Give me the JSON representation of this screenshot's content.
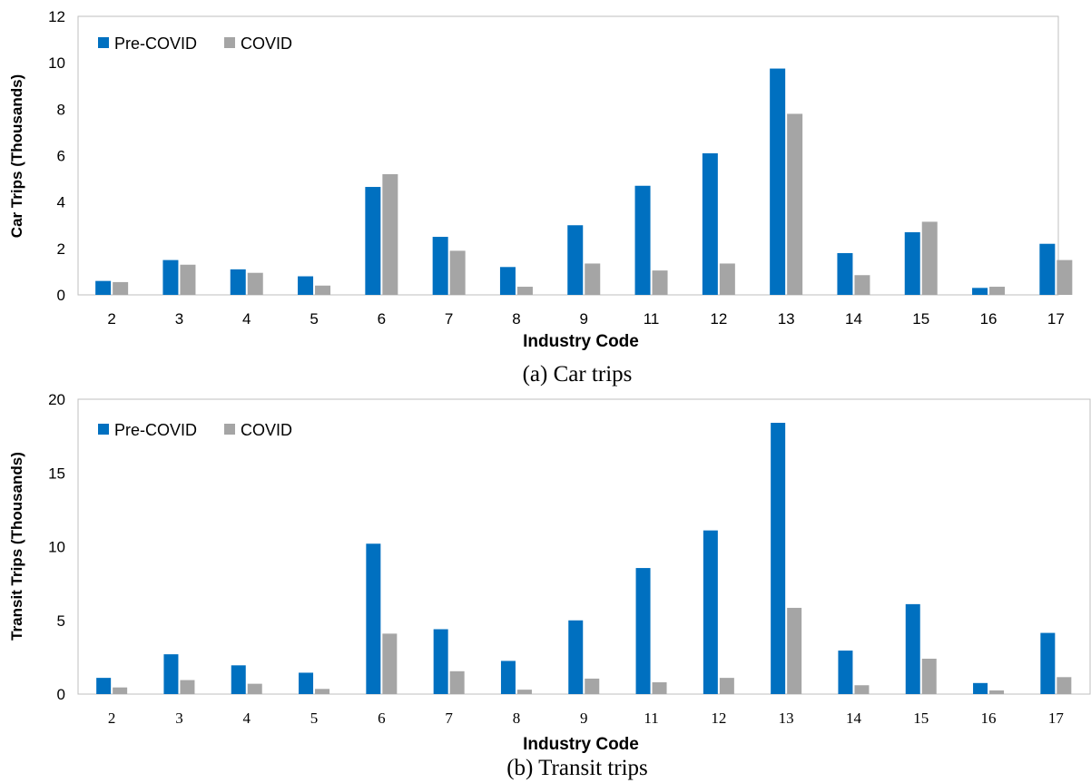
{
  "colors": {
    "pre": "#0070C0",
    "covid": "#A5A5A5"
  },
  "legend": [
    "Pre-COVID",
    "COVID"
  ],
  "chart_data": [
    {
      "type": "bar",
      "caption": "(a) Car trips",
      "xlabel": "Industry Code",
      "ylabel": "Car Trips (Thousands)",
      "ylim": [
        0,
        12
      ],
      "yticks": [
        0,
        2,
        4,
        6,
        8,
        10,
        12
      ],
      "categories": [
        "2",
        "3",
        "4",
        "5",
        "6",
        "7",
        "8",
        "9",
        "11",
        "12",
        "13",
        "14",
        "15",
        "16",
        "17"
      ],
      "series": [
        {
          "name": "Pre-COVID",
          "values": [
            0.6,
            1.5,
            1.1,
            0.8,
            4.65,
            2.5,
            1.2,
            3.0,
            4.7,
            6.1,
            9.75,
            1.8,
            2.7,
            0.3,
            2.2
          ]
        },
        {
          "name": "COVID",
          "values": [
            0.55,
            1.3,
            0.95,
            0.4,
            5.2,
            1.9,
            0.35,
            1.35,
            1.05,
            1.35,
            7.8,
            0.85,
            3.15,
            0.35,
            1.5
          ]
        }
      ]
    },
    {
      "type": "bar",
      "caption": "(b) Transit trips",
      "xlabel": "Industry Code",
      "ylabel": "Transit Trips (Thousands)",
      "ylim": [
        0,
        20
      ],
      "yticks": [
        0,
        5,
        10,
        15,
        20
      ],
      "categories": [
        "2",
        "3",
        "4",
        "5",
        "6",
        "7",
        "8",
        "9",
        "11",
        "12",
        "13",
        "14",
        "15",
        "16",
        "17"
      ],
      "series": [
        {
          "name": "Pre-COVID",
          "values": [
            1.1,
            2.7,
            1.95,
            1.45,
            10.2,
            4.4,
            2.25,
            5.0,
            8.55,
            11.1,
            18.4,
            2.95,
            6.1,
            0.75,
            4.15
          ]
        },
        {
          "name": "COVID",
          "values": [
            0.45,
            0.95,
            0.7,
            0.35,
            4.1,
            1.55,
            0.3,
            1.05,
            0.8,
            1.1,
            5.85,
            0.6,
            2.4,
            0.25,
            1.15
          ]
        }
      ]
    }
  ]
}
